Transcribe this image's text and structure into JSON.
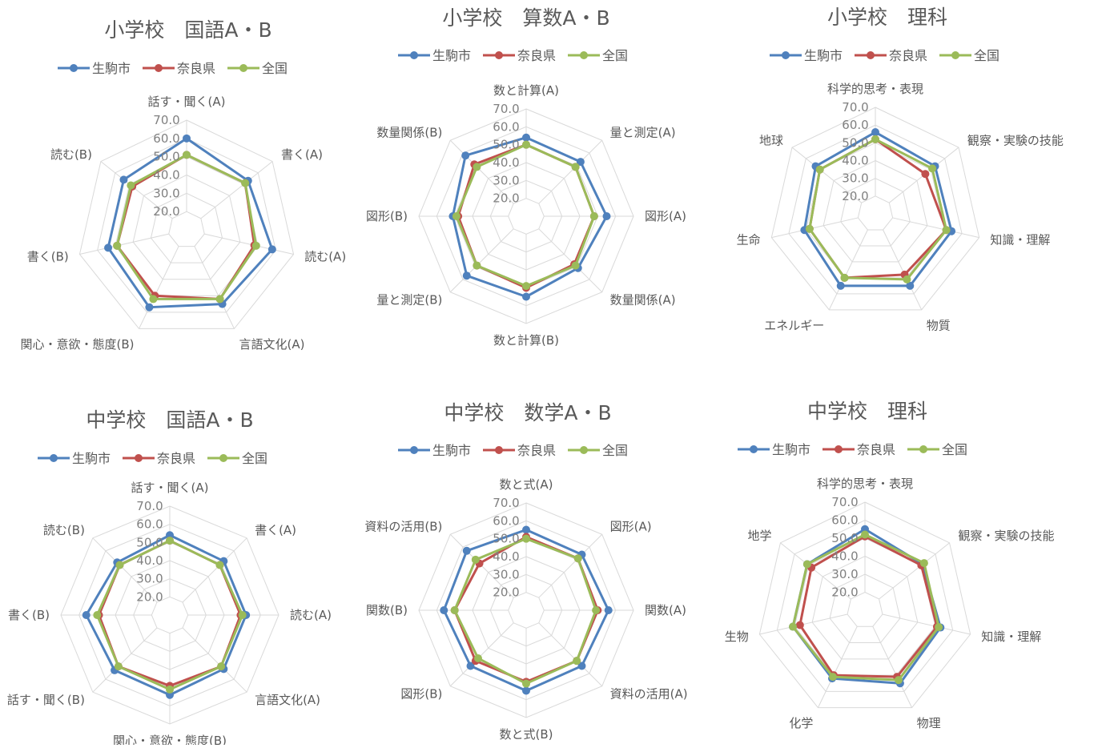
{
  "legend": [
    "生駒市",
    "奈良県",
    "全国"
  ],
  "colors": {
    "生駒市": "#4f81bd",
    "奈良県": "#c0504d",
    "全国": "#9bbb59"
  },
  "ticks": [
    "20.0",
    "30.0",
    "40.0",
    "50.0",
    "60.0",
    "70.0"
  ],
  "chart_data": [
    {
      "type": "radar",
      "title": "小学校　国語A・B",
      "categories": [
        "話す・聞く(A)",
        "書く(A)",
        "読む(A)",
        "言語文化(A)",
        "関心・意欲・態度(B)",
        "書く(B)",
        "読む(B)"
      ],
      "rlim": [
        10,
        70
      ],
      "series": [
        {
          "name": "生駒市",
          "values": [
            60,
            53,
            58,
            55,
            57,
            54,
            54
          ]
        },
        {
          "name": "奈良県",
          "values": [
            51,
            51,
            48,
            52,
            50,
            49,
            48
          ]
        },
        {
          "name": "全国",
          "values": [
            51,
            51,
            49,
            52,
            52,
            49,
            49
          ]
        }
      ]
    },
    {
      "type": "radar",
      "title": "小学校　算数A・B",
      "categories": [
        "数と計算(A)",
        "量と測定(A)",
        "図形(A)",
        "数量関係(A)",
        "数と計算(B)",
        "量と測定(B)",
        "図形(B)",
        "数量関係(B)"
      ],
      "rlim": [
        10,
        70
      ],
      "series": [
        {
          "name": "生駒市",
          "values": [
            54,
            53,
            55,
            51,
            55,
            57,
            51,
            58
          ]
        },
        {
          "name": "奈良県",
          "values": [
            50,
            49,
            48,
            48,
            50,
            49,
            48,
            51
          ]
        },
        {
          "name": "全国",
          "values": [
            50,
            49,
            48,
            49,
            49,
            49,
            49,
            49
          ]
        }
      ]
    },
    {
      "type": "radar",
      "title": "小学校　理科",
      "categories": [
        "科学的思考・表現",
        "観察・実験の技能",
        "知識・理解",
        "物質",
        "エネルギー",
        "生命",
        "地球"
      ],
      "rlim": [
        10,
        70
      ],
      "series": [
        {
          "name": "生駒市",
          "values": [
            56,
            53,
            54,
            55,
            55,
            51,
            53
          ]
        },
        {
          "name": "奈良県",
          "values": [
            52,
            46,
            51,
            48,
            50,
            48,
            50
          ]
        },
        {
          "name": "全国",
          "values": [
            52,
            51,
            51,
            51,
            50,
            48,
            50
          ]
        }
      ]
    },
    {
      "type": "radar",
      "title": "中学校　国語A・B",
      "categories": [
        "話す・聞く(A)",
        "書く(A)",
        "読む(A)",
        "言語文化(A)",
        "関心・意欲・態度(B)",
        "話す・聞く(B)",
        "書く(B)",
        "読む(B)"
      ],
      "rlim": [
        10,
        70
      ],
      "series": [
        {
          "name": "生駒市",
          "values": [
            54,
            52,
            52,
            52,
            54,
            53,
            56,
            51
          ]
        },
        {
          "name": "奈良県",
          "values": [
            51,
            49,
            49,
            50,
            49,
            50,
            49,
            49
          ]
        },
        {
          "name": "全国",
          "values": [
            51,
            49,
            50,
            50,
            51,
            50,
            50,
            49
          ]
        }
      ]
    },
    {
      "type": "radar",
      "title": "中学校　数学A・B",
      "categories": [
        "数と式(A)",
        "図形(A)",
        "関数(A)",
        "資料の活用(A)",
        "数と式(B)",
        "図形(B)",
        "関数(B)",
        "資料の活用(B)"
      ],
      "rlim": [
        10,
        70
      ],
      "series": [
        {
          "name": "生駒市",
          "values": [
            55,
            54,
            56,
            54,
            55,
            54,
            56,
            57
          ]
        },
        {
          "name": "奈良県",
          "values": [
            51,
            51,
            50,
            50,
            50,
            50,
            50,
            47
          ]
        },
        {
          "name": "全国",
          "values": [
            50,
            51,
            49,
            50,
            51,
            48,
            50,
            50
          ]
        }
      ]
    },
    {
      "type": "radar",
      "title": "中学校　理科",
      "categories": [
        "科学的思考・表現",
        "観察・実験の技能",
        "知識・理解",
        "物理",
        "化学",
        "生物",
        "地学"
      ],
      "rlim": [
        10,
        70
      ],
      "series": [
        {
          "name": "生駒市",
          "values": [
            55,
            51,
            53,
            55,
            52,
            51,
            51
          ]
        },
        {
          "name": "奈良県",
          "values": [
            51,
            50,
            51,
            51,
            50,
            47,
            48
          ]
        },
        {
          "name": "全国",
          "values": [
            52,
            52,
            52,
            53,
            51,
            51,
            51
          ]
        }
      ]
    }
  ]
}
